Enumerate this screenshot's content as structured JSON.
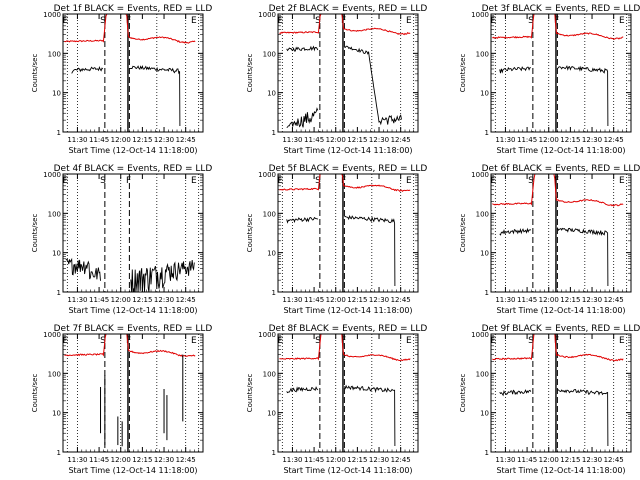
{
  "chart_data": [
    {
      "type": "line",
      "title": "Det 1f BLACK = Events, RED = LLD",
      "xlabel": "Start Time (12-Oct-14 11:18:00)",
      "ylabel": "Counts/sec",
      "yscale": "log",
      "ylim": [
        1,
        1000
      ],
      "y_ticks": [
        "1",
        "10",
        "100",
        "1000"
      ],
      "x_ticks": [
        "11:30",
        "11:45",
        "12:00",
        "12:15",
        "12:30",
        "12:45"
      ],
      "markers": [
        "E",
        "S",
        "F",
        "E"
      ],
      "red_level": 200,
      "black_level": 45,
      "black_mode": "mid"
    },
    {
      "type": "line",
      "title": "Det 2f BLACK = Events, RED = LLD",
      "xlabel": "Start Time (12-Oct-14 11:18:00)",
      "ylabel": "Counts/sec",
      "yscale": "log",
      "ylim": [
        1,
        1000
      ],
      "y_ticks": [
        "1",
        "10",
        "100",
        "1000"
      ],
      "x_ticks": [
        "11:30",
        "11:45",
        "12:00",
        "12:15",
        "12:30",
        "12:45"
      ],
      "markers": [
        "E",
        "S",
        "F",
        "E"
      ],
      "red_level": 330,
      "black_level": 150,
      "black_mode": "decay"
    },
    {
      "type": "line",
      "title": "Det 3f BLACK = Events, RED = LLD",
      "xlabel": "Start Time (12-Oct-14 11:18:00)",
      "ylabel": "Counts/sec",
      "yscale": "log",
      "ylim": [
        1,
        1000
      ],
      "y_ticks": [
        "1",
        "10",
        "100",
        "1000"
      ],
      "x_ticks": [
        "11:30",
        "11:45",
        "12:00",
        "12:15",
        "12:30",
        "12:45"
      ],
      "markers": [
        "E",
        "S",
        "F",
        "E"
      ],
      "red_level": 250,
      "black_level": 45,
      "black_mode": "mid"
    },
    {
      "type": "line",
      "title": "Det 4f BLACK = Events, RED = LLD",
      "xlabel": "Start Time (12-Oct-14 11:18:00)",
      "ylabel": "Counts/sec",
      "yscale": "log",
      "ylim": [
        1,
        1000
      ],
      "y_ticks": [
        "1",
        "10",
        "100",
        "1000"
      ],
      "x_ticks": [
        "11:30",
        "11:45",
        "12:00",
        "12:15",
        "12:30",
        "12:45"
      ],
      "markers": [
        "E",
        "S",
        "F",
        "E"
      ],
      "red_level": 0,
      "black_level": 5,
      "black_mode": "noise"
    },
    {
      "type": "line",
      "title": "Det 5f BLACK = Events, RED = LLD",
      "xlabel": "Start Time (12-Oct-14 11:18:00)",
      "ylabel": "Counts/sec",
      "yscale": "log",
      "ylim": [
        1,
        1000
      ],
      "y_ticks": [
        "1",
        "10",
        "100",
        "1000"
      ],
      "x_ticks": [
        "11:30",
        "11:45",
        "12:00",
        "12:15",
        "12:30",
        "12:45"
      ],
      "markers": [
        "E",
        "S",
        "F",
        "E"
      ],
      "red_level": 400,
      "black_level": 80,
      "black_mode": "mid"
    },
    {
      "type": "line",
      "title": "Det 6f BLACK = Events, RED = LLD",
      "xlabel": "Start Time (12-Oct-14 11:18:00)",
      "ylabel": "Counts/sec",
      "yscale": "log",
      "ylim": [
        1,
        1000
      ],
      "y_ticks": [
        "1",
        "10",
        "100",
        "1000"
      ],
      "x_ticks": [
        "11:30",
        "11:45",
        "12:00",
        "12:15",
        "12:30",
        "12:45"
      ],
      "markers": [
        "E",
        "S",
        "F",
        "E"
      ],
      "red_level": 170,
      "black_level": 40,
      "black_mode": "mid"
    },
    {
      "type": "line",
      "title": "Det 7f BLACK = Events, RED = LLD",
      "xlabel": "Start Time (12-Oct-14 11:18:00)",
      "ylabel": "Counts/sec",
      "yscale": "log",
      "ylim": [
        1,
        1000
      ],
      "y_ticks": [
        "1",
        "10",
        "100",
        "1000"
      ],
      "x_ticks": [
        "11:30",
        "11:45",
        "12:00",
        "12:15",
        "12:30",
        "12:45"
      ],
      "markers": [
        "E",
        "S",
        "F",
        "E"
      ],
      "red_level": 290,
      "black_level": 10,
      "black_mode": "sparse"
    },
    {
      "type": "line",
      "title": "Det 8f BLACK = Events, RED = LLD",
      "xlabel": "Start Time (12-Oct-14 11:18:00)",
      "ylabel": "Counts/sec",
      "yscale": "log",
      "ylim": [
        1,
        1000
      ],
      "y_ticks": [
        "1",
        "10",
        "100",
        "1000"
      ],
      "x_ticks": [
        "11:30",
        "11:45",
        "12:00",
        "12:15",
        "12:30",
        "12:45"
      ],
      "markers": [
        "E",
        "S",
        "F",
        "E"
      ],
      "red_level": 230,
      "black_level": 45,
      "black_mode": "mid"
    },
    {
      "type": "line",
      "title": "Det 9f BLACK = Events, RED = LLD",
      "xlabel": "Start Time (12-Oct-14 11:18:00)",
      "ylabel": "Counts/sec",
      "yscale": "log",
      "ylim": [
        1,
        1000
      ],
      "y_ticks": [
        "1",
        "10",
        "100",
        "1000"
      ],
      "x_ticks": [
        "11:30",
        "11:45",
        "12:00",
        "12:15",
        "12:30",
        "12:45"
      ],
      "markers": [
        "E",
        "S",
        "F",
        "E"
      ],
      "red_level": 230,
      "black_level": 38,
      "black_mode": "mid"
    }
  ]
}
